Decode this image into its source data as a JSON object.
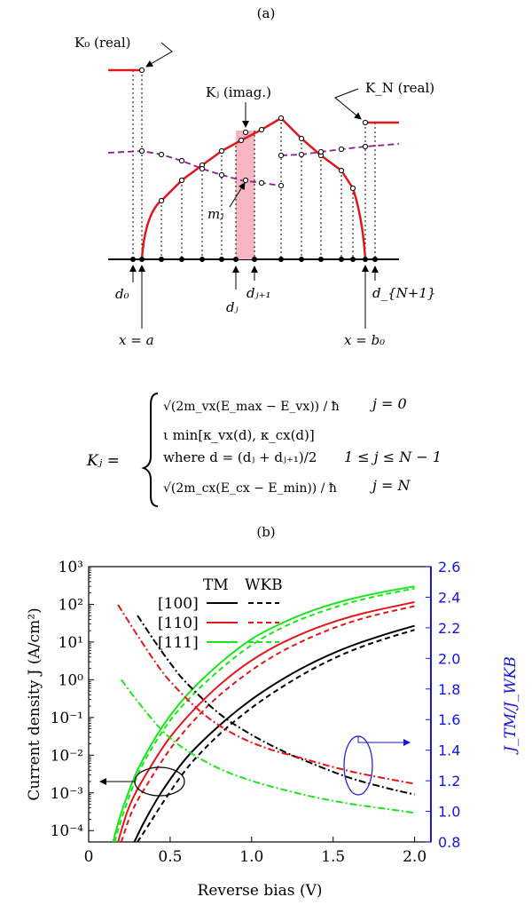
{
  "panel_a": {
    "label": "(a)",
    "k0_label": "K₀ (real)",
    "kj_label": "Kⱼ (imag.)",
    "kn_label": "K_N (real)",
    "mj_label": "mⱼ",
    "d0_label": "d₀",
    "dj_label": "dⱼ",
    "dj1_label": "dⱼ₊₁",
    "dn1_label": "d_{N+1}",
    "xa_label": "x = a",
    "xb_label": "x = b₀",
    "equation": {
      "lhs": "Kⱼ =",
      "case1_expr": "√(2m_vx(E_max − E_vx)) / ħ",
      "case1_cond": "j = 0",
      "case2_expr": "ι min[κ_vx(d), κ_cx(d)]",
      "case3_expr": "where d = (dⱼ + dⱼ₊₁)/2",
      "case3_cond": "1 ≤ j ≤ N − 1",
      "case4_expr": "√(2m_cx(E_cx − E_min)) / ħ",
      "case4_cond": "j = N"
    }
  },
  "panel_b": {
    "label": "(b)",
    "legend_tm": "TM",
    "legend_wkb": "WKB",
    "legend_100": "[100]",
    "legend_110": "[110]",
    "legend_111": "[111]"
  },
  "colors": {
    "black": "#000000",
    "red": "#e3161b",
    "green": "#19e619",
    "purple": "#8b1f96",
    "pink": "#f7b6c2",
    "blue": "#1515e0"
  },
  "chart_data": {
    "type": "line",
    "xlabel": "Reverse bias (V)",
    "ylabel": "Current density J (A/cm²)",
    "y2label": "J_TM/J_WKB",
    "xlim": [
      0,
      2.1
    ],
    "ylim": [
      5e-05,
      1000
    ],
    "yscale": "log",
    "y2lim": [
      0.8,
      2.6
    ],
    "x_ticks": [
      "0",
      "0.5",
      "1.0",
      "1.5",
      "2.0"
    ],
    "y_ticks": [
      "10³",
      "10²",
      "10¹",
      "10⁰",
      "10⁻¹",
      "10⁻²",
      "10⁻³",
      "10⁻⁴"
    ],
    "y2_ticks": [
      "0.8",
      "1.0",
      "1.2",
      "1.4",
      "1.6",
      "1.8",
      "2.0",
      "2.2",
      "2.4",
      "2.6"
    ],
    "series": [
      {
        "name": "[100] TM",
        "axis": "left",
        "style": "solid",
        "color": "#000000",
        "x": [
          0.28,
          0.35,
          0.45,
          0.6,
          0.8,
          1.0,
          1.2,
          1.4,
          1.6,
          1.8,
          2.0
        ],
        "y": [
          5e-05,
          0.0002,
          0.0011,
          0.0085,
          0.06,
          0.3,
          1.1,
          3.2,
          7.6,
          15,
          27
        ]
      },
      {
        "name": "[100] WKB",
        "axis": "left",
        "style": "dashed",
        "color": "#000000",
        "x": [
          0.3,
          0.38,
          0.48,
          0.62,
          0.8,
          1.0,
          1.2,
          1.4,
          1.6,
          1.8,
          2.0
        ],
        "y": [
          5e-05,
          0.00017,
          0.0008,
          0.0055,
          0.035,
          0.18,
          0.7,
          2.2,
          5.6,
          11.5,
          21
        ]
      },
      {
        "name": "[110] TM",
        "axis": "left",
        "style": "solid",
        "color": "#e3161b",
        "x": [
          0.18,
          0.25,
          0.35,
          0.5,
          0.7,
          0.9,
          1.1,
          1.3,
          1.5,
          1.7,
          2.0
        ],
        "y": [
          5e-05,
          0.00045,
          0.003,
          0.03,
          0.28,
          1.6,
          6,
          16,
          34,
          60,
          115
        ]
      },
      {
        "name": "[110] WKB",
        "axis": "left",
        "style": "dashed",
        "color": "#e3161b",
        "x": [
          0.2,
          0.27,
          0.37,
          0.52,
          0.72,
          0.92,
          1.12,
          1.32,
          1.52,
          1.72,
          2.0
        ],
        "y": [
          5e-05,
          0.00035,
          0.002,
          0.019,
          0.18,
          1.0,
          3.9,
          11,
          25,
          47,
          90
        ]
      },
      {
        "name": "[111] TM",
        "axis": "left",
        "style": "solid",
        "color": "#19e619",
        "x": [
          0.15,
          0.2,
          0.3,
          0.45,
          0.6,
          0.8,
          1.0,
          1.2,
          1.4,
          1.6,
          1.8,
          2.0
        ],
        "y": [
          5e-05,
          0.0003,
          0.004,
          0.055,
          0.38,
          2.6,
          12,
          34,
          75,
          135,
          210,
          300
        ]
      },
      {
        "name": "[111] WKB",
        "axis": "left",
        "style": "dashed",
        "color": "#19e619",
        "x": [
          0.16,
          0.22,
          0.32,
          0.47,
          0.62,
          0.82,
          1.02,
          1.22,
          1.42,
          1.62,
          1.82,
          2.0
        ],
        "y": [
          5e-05,
          0.00035,
          0.0045,
          0.055,
          0.33,
          2.1,
          9.5,
          28,
          62,
          115,
          185,
          265
        ]
      },
      {
        "name": "[100] TM/WKB",
        "axis": "right",
        "style": "dashdot",
        "color": "#000000",
        "x": [
          0.3,
          0.4,
          0.5,
          0.6,
          0.8,
          1.0,
          1.2,
          1.4,
          1.6,
          1.8,
          2.0
        ],
        "y": [
          2.28,
          2.12,
          1.97,
          1.84,
          1.64,
          1.5,
          1.39,
          1.3,
          1.22,
          1.16,
          1.11
        ]
      },
      {
        "name": "[110] TM/WKB",
        "axis": "right",
        "style": "dashdot",
        "color": "#e3161b",
        "x": [
          0.18,
          0.3,
          0.4,
          0.5,
          0.7,
          0.9,
          1.1,
          1.3,
          1.5,
          1.7,
          2.0
        ],
        "y": [
          2.35,
          2.15,
          1.99,
          1.85,
          1.64,
          1.5,
          1.41,
          1.35,
          1.29,
          1.24,
          1.18
        ]
      },
      {
        "name": "[111] TM/WKB",
        "axis": "right",
        "style": "dashdot",
        "color": "#19e619",
        "x": [
          0.2,
          0.3,
          0.45,
          0.6,
          0.8,
          1.0,
          1.2,
          1.4,
          1.6,
          1.8,
          2.0
        ],
        "y": [
          1.86,
          1.72,
          1.53,
          1.4,
          1.28,
          1.2,
          1.14,
          1.09,
          1.05,
          1.02,
          0.99
        ]
      }
    ]
  }
}
